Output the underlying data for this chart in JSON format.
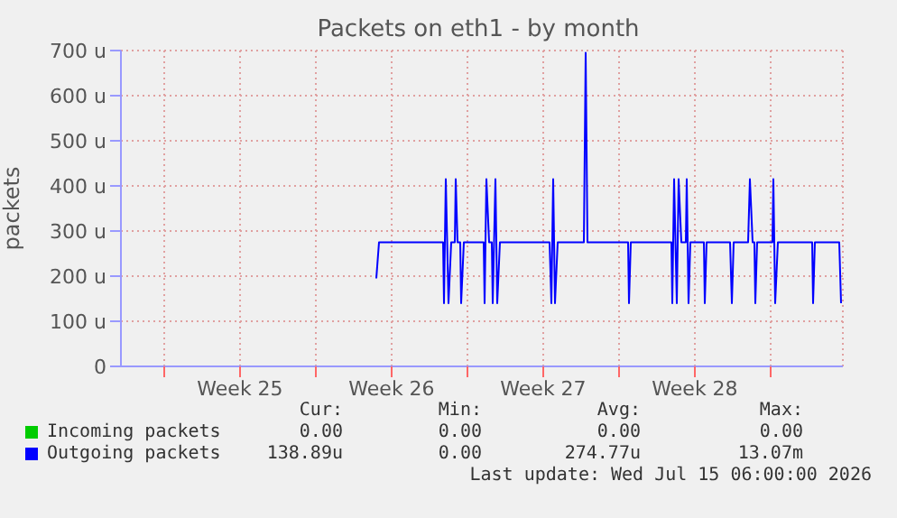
{
  "chart_data": {
    "type": "line",
    "title": "Packets on eth1 - by month",
    "ylabel": "packets",
    "xlim": [
      "2026-06-12T00:00",
      "2026-07-15T08:00"
    ],
    "xticks": [
      {
        "value": "2026-06-14T00:00",
        "label": null
      },
      {
        "value": "2026-06-17T12:00",
        "label": "Week 25"
      },
      {
        "value": "2026-06-21T00:00",
        "label": null
      },
      {
        "value": "2026-06-24T12:00",
        "label": "Week 26"
      },
      {
        "value": "2026-06-28T00:00",
        "label": null
      },
      {
        "value": "2026-07-01T12:00",
        "label": "Week 27"
      },
      {
        "value": "2026-07-05T00:00",
        "label": null
      },
      {
        "value": "2026-07-08T12:00",
        "label": "Week 28"
      },
      {
        "value": "2026-07-12T00:00",
        "label": null
      }
    ],
    "ylim": [
      0,
      700
    ],
    "yticks": [
      0,
      {
        "value": 100,
        "label": "100 u"
      },
      {
        "value": 200,
        "label": "200 u"
      },
      {
        "value": 300,
        "label": "300 u"
      },
      {
        "value": 400,
        "label": "400 u"
      },
      {
        "value": 500,
        "label": "500 u"
      },
      {
        "value": 600,
        "label": "600 u"
      },
      {
        "value": 700,
        "label": "700 u"
      }
    ],
    "grid": true,
    "legend": "bottom",
    "marker": "none",
    "line_style": "solid",
    "series": [
      {
        "name": "Incoming packets",
        "color": "#00cc00"
      },
      {
        "name": "Outgoing packets",
        "color": "#0000ff",
        "x": [
          "2026-06-23T19:00",
          "2026-06-23T22:00",
          "2026-06-26T21:00",
          "2026-06-26T22:00",
          "2026-06-27T00:00",
          "2026-06-27T03:00",
          "2026-06-27T06:00",
          "2026-06-27T10:00",
          "2026-06-27T11:00",
          "2026-06-27T13:00",
          "2026-06-27T16:00",
          "2026-06-27T17:00",
          "2026-06-27T20:00",
          "2026-06-28T18:00",
          "2026-06-28T19:00",
          "2026-06-28T21:00",
          "2026-06-29T00:00",
          "2026-06-29T03:00",
          "2026-06-29T04:00",
          "2026-06-29T07:00",
          "2026-06-29T09:00",
          "2026-06-29T12:00",
          "2026-07-01T19:00",
          "2026-07-01T21:00",
          "2026-07-01T23:00",
          "2026-07-02T01:00",
          "2026-07-02T04:00",
          "2026-07-03T09:00",
          "2026-07-03T11:00",
          "2026-07-03T13:00",
          "2026-07-05T10:00",
          "2026-07-05T11:00",
          "2026-07-05T13:00",
          "2026-07-07T10:00",
          "2026-07-07T11:00",
          "2026-07-07T13:00",
          "2026-07-07T16:00",
          "2026-07-07T18:00",
          "2026-07-07T21:00",
          "2026-07-08T02:00",
          "2026-07-08T03:00",
          "2026-07-08T05:00",
          "2026-07-08T07:00",
          "2026-07-08T22:00",
          "2026-07-08T23:00",
          "2026-07-09T01:00",
          "2026-07-10T03:00",
          "2026-07-10T05:00",
          "2026-07-10T07:00",
          "2026-07-10T23:00",
          "2026-07-11T01:00",
          "2026-07-11T04:00",
          "2026-07-11T06:00",
          "2026-07-11T07:00",
          "2026-07-11T09:00",
          "2026-07-12T02:00",
          "2026-07-12T03:00",
          "2026-07-12T05:00",
          "2026-07-12T08:00",
          "2026-07-13T22:00",
          "2026-07-13T23:00",
          "2026-07-14T01:00",
          "2026-07-15T04:00",
          "2026-07-15T06:00"
        ],
        "values": [
          195,
          275,
          275,
          140,
          415,
          140,
          275,
          275,
          415,
          275,
          275,
          140,
          275,
          275,
          140,
          415,
          275,
          275,
          140,
          415,
          140,
          275,
          275,
          140,
          415,
          140,
          275,
          275,
          695,
          275,
          275,
          140,
          275,
          275,
          140,
          415,
          140,
          415,
          275,
          275,
          415,
          140,
          275,
          275,
          140,
          275,
          275,
          140,
          275,
          275,
          415,
          275,
          275,
          140,
          275,
          275,
          415,
          140,
          275,
          275,
          140,
          275,
          275,
          140
        ]
      }
    ],
    "annotations": [
      "Cur:",
      "Min:",
      "Avg:",
      "Max:",
      "0.00",
      "0.00",
      "0.00",
      "0.00",
      "138.89u",
      "0.00",
      "274.77u",
      "13.07m",
      "Last update: Wed Jul 15 06:00:00 2026"
    ]
  }
}
